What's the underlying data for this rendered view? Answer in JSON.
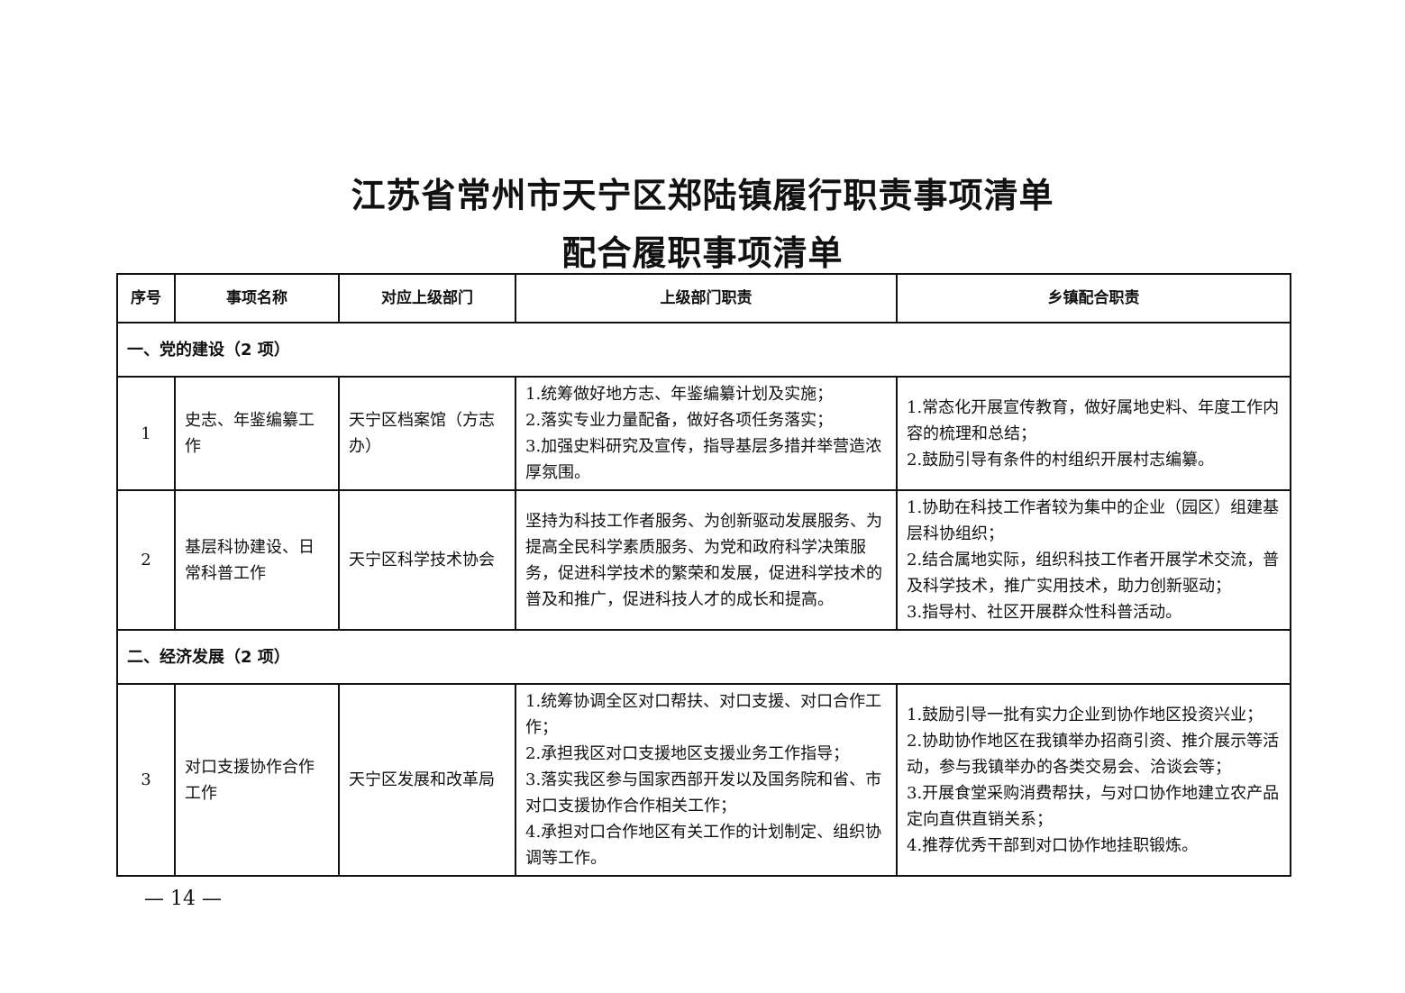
{
  "title": {
    "line1": "江苏省常州市天宁区郑陆镇履行职责事项清单",
    "line2": "配合履职事项清单"
  },
  "table": {
    "headers": [
      "序号",
      "事项名称",
      "对应上级部门",
      "上级部门职责",
      "乡镇配合职责"
    ],
    "sections": [
      {
        "label": "一、党的建设（2 项）",
        "rows": [
          {
            "no": "1",
            "name": "史志、年鉴编纂工作",
            "dept": "天宁区档案馆（方志办）",
            "duties": [
              "1.统筹做好地方志、年鉴编纂计划及实施；",
              "2.落实专业力量配备，做好各项任务落实；",
              "3.加强史料研究及宣传，指导基层多措并举营造浓厚氛围。"
            ],
            "town": [
              "1.常态化开展宣传教育，做好属地史料、年度工作内容的梳理和总结；",
              "2.鼓励引导有条件的村组织开展村志编纂。"
            ]
          },
          {
            "no": "2",
            "name": "基层科协建设、日常科普工作",
            "dept": "天宁区科学技术协会",
            "duties": [
              "坚持为科技工作者服务、为创新驱动发展服务、为提高全民科学素质服务、为党和政府科学决策服务，促进科学技术的繁荣和发展，促进科学技术的普及和推广，促进科技人才的成长和提高。"
            ],
            "town": [
              "1.协助在科技工作者较为集中的企业（园区）组建基层科协组织；",
              "2.结合属地实际，组织科技工作者开展学术交流，普及科学技术，推广实用技术，助力创新驱动；",
              "3.指导村、社区开展群众性科普活动。"
            ]
          }
        ]
      },
      {
        "label": "二、经济发展（2 项）",
        "rows": [
          {
            "no": "3",
            "name": "对口支援协作合作工作",
            "dept": "天宁区发展和改革局",
            "duties": [
              "1.统筹协调全区对口帮扶、对口支援、对口合作工作；",
              "2.承担我区对口支援地区支援业务工作指导；",
              "3.落实我区参与国家西部开发以及国务院和省、市对口支援协作合作相关工作；",
              "4.承担对口合作地区有关工作的计划制定、组织协调等工作。"
            ],
            "town": [
              "1.鼓励引导一批有实力企业到协作地区投资兴业；",
              "2.协助协作地区在我镇举办招商引资、推介展示等活动，参与我镇举办的各类交易会、洽谈会等；",
              "3.开展食堂采购消费帮扶，与对口协作地建立农产品定向直供直销关系；",
              "4.推荐优秀干部到对口协作地挂职锻炼。"
            ]
          }
        ]
      }
    ]
  },
  "page_number": "— 14 —"
}
